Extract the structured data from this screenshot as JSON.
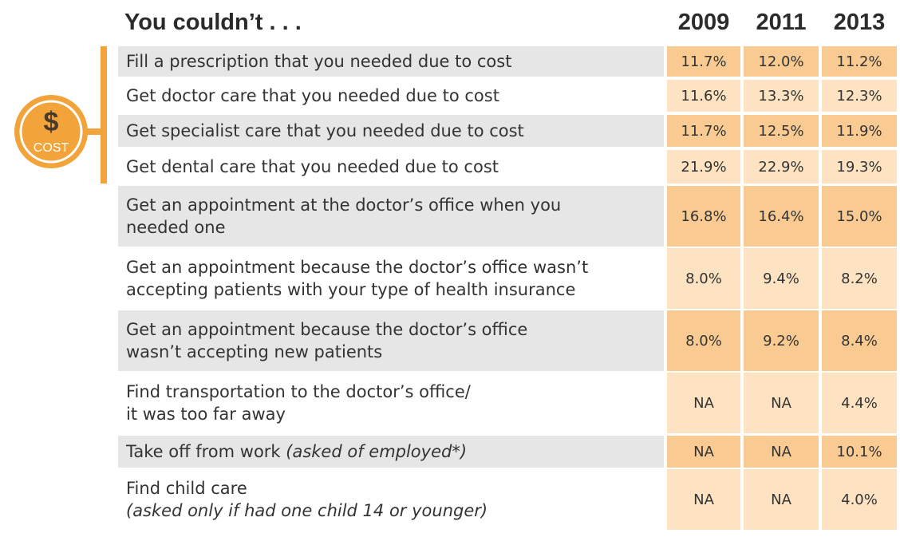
{
  "header": {
    "title": "You couldn’t . . .",
    "years": [
      "2009",
      "2011",
      "2013"
    ]
  },
  "icon": {
    "symbol": "$",
    "label": "COST"
  },
  "rows": [
    {
      "lines": [
        [
          {
            "text": "Fill a prescription that you needed due to cost"
          }
        ]
      ],
      "values": [
        "11.7%",
        "12.0%",
        "11.2%"
      ]
    },
    {
      "lines": [
        [
          {
            "text": "Get doctor care that you needed due to cost"
          }
        ]
      ],
      "values": [
        "11.6%",
        "13.3%",
        "12.3%"
      ]
    },
    {
      "lines": [
        [
          {
            "text": "Get specialist care that you needed due to cost"
          }
        ]
      ],
      "values": [
        "11.7%",
        "12.5%",
        "11.9%"
      ]
    },
    {
      "lines": [
        [
          {
            "text": "Get dental care that you needed due to cost"
          }
        ]
      ],
      "values": [
        "21.9%",
        "22.9%",
        "19.3%"
      ]
    },
    {
      "lines": [
        [
          {
            "text": "Get an appointment at the doctor’s office when you"
          }
        ],
        [
          {
            "text": "needed one"
          }
        ]
      ],
      "values": [
        "16.8%",
        "16.4%",
        "15.0%"
      ]
    },
    {
      "lines": [
        [
          {
            "text": "Get an appointment because the doctor’s office wasn’t"
          }
        ],
        [
          {
            "text": "accepting patients with your type of health insurance"
          }
        ]
      ],
      "values": [
        "8.0%",
        "9.4%",
        "8.2%"
      ]
    },
    {
      "lines": [
        [
          {
            "text": "Get an appointment because the doctor’s office"
          }
        ],
        [
          {
            "text": "wasn’t accepting new patients"
          }
        ]
      ],
      "values": [
        "8.0%",
        "9.2%",
        "8.4%"
      ]
    },
    {
      "lines": [
        [
          {
            "text": "Find transportation to the doctor’s office/"
          }
        ],
        [
          {
            "text": "it was too far away"
          }
        ]
      ],
      "values": [
        "NA",
        "NA",
        "4.4%"
      ]
    },
    {
      "lines": [
        [
          {
            "text": "Take off from work "
          },
          {
            "text": "(asked of employed*)",
            "italic": true
          }
        ]
      ],
      "values": [
        "NA",
        "NA",
        "10.1%"
      ]
    },
    {
      "lines": [
        [
          {
            "text": "Find child care"
          }
        ],
        [
          {
            "text": "(asked only if had one child 14 or younger)",
            "italic": true
          }
        ]
      ],
      "values": [
        "NA",
        "NA",
        "4.0%"
      ]
    }
  ]
}
